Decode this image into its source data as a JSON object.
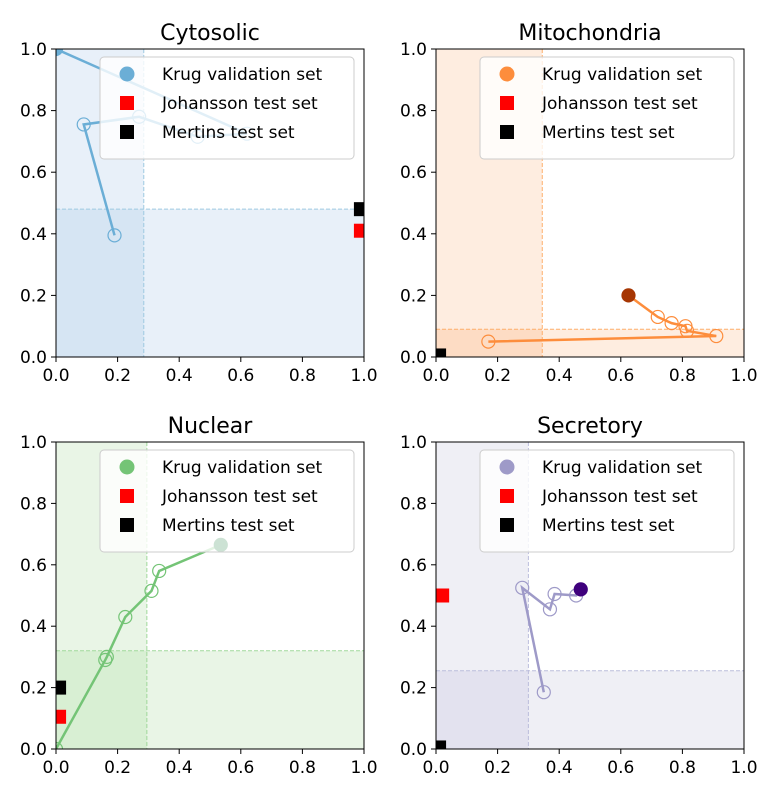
{
  "chart_data": [
    {
      "type": "scatter",
      "title": "Cytosolic",
      "xlim": [
        0,
        1
      ],
      "ylim": [
        0,
        1
      ],
      "xticks": [
        "0.0",
        "0.2",
        "0.4",
        "0.6",
        "0.8",
        "1.0"
      ],
      "yticks": [
        "0.0",
        "0.2",
        "0.4",
        "0.6",
        "0.8",
        "1.0"
      ],
      "legend_position": "top-right",
      "colors": {
        "line": "#6baed6",
        "region_light": "#e8f0f9",
        "region_dark": "#d6e5f3",
        "threshold": "#9ecae1",
        "final": "#6baed6"
      },
      "thresholds": {
        "x": 0.285,
        "y": 0.48
      },
      "series": [
        {
          "name": "Krug validation set",
          "marker": "circle",
          "x": [
            0.19,
            0.09,
            0.27,
            0.46,
            0.62,
            0.0
          ],
          "y": [
            0.395,
            0.755,
            0.78,
            0.715,
            0.725,
            1.0
          ]
        },
        {
          "name": "Johansson test set",
          "marker": "square",
          "color": "#ff0000",
          "x": [
            0.99
          ],
          "y": [
            0.41
          ]
        },
        {
          "name": "Mertins test set",
          "marker": "square",
          "color": "#000000",
          "x": [
            0.99
          ],
          "y": [
            0.48
          ]
        }
      ]
    },
    {
      "type": "scatter",
      "title": "Mitochondria",
      "xlim": [
        0,
        1
      ],
      "ylim": [
        0,
        1
      ],
      "xticks": [
        "0.0",
        "0.2",
        "0.4",
        "0.6",
        "0.8",
        "1.0"
      ],
      "yticks": [
        "0.0",
        "0.2",
        "0.4",
        "0.6",
        "0.8",
        "1.0"
      ],
      "legend_position": "top-right",
      "colors": {
        "line": "#fd8d3c",
        "region_light": "#feede0",
        "region_dark": "#fddcc4",
        "threshold": "#fdae6b",
        "final": "#a63603"
      },
      "thresholds": {
        "x": 0.345,
        "y": 0.09
      },
      "series": [
        {
          "name": "Krug validation set",
          "marker": "circle",
          "x": [
            0.17,
            0.91,
            0.815,
            0.81,
            0.765,
            0.72,
            0.625
          ],
          "y": [
            0.05,
            0.068,
            0.085,
            0.1,
            0.11,
            0.13,
            0.2
          ]
        },
        {
          "name": "Johansson test set",
          "marker": "square",
          "color": "#ff0000",
          "x": [],
          "y": []
        },
        {
          "name": "Mertins test set",
          "marker": "square",
          "color": "#000000",
          "x": [
            0.01
          ],
          "y": [
            0.005
          ]
        }
      ]
    },
    {
      "type": "scatter",
      "title": "Nuclear",
      "xlim": [
        0,
        1
      ],
      "ylim": [
        0,
        1
      ],
      "xticks": [
        "0.0",
        "0.2",
        "0.4",
        "0.6",
        "0.8",
        "1.0"
      ],
      "yticks": [
        "0.0",
        "0.2",
        "0.4",
        "0.6",
        "0.8",
        "1.0"
      ],
      "legend_position": "top-right",
      "colors": {
        "line": "#74c476",
        "region_light": "#e9f5e6",
        "region_dark": "#d8efd3",
        "threshold": "#a1d99b",
        "final": "#006d2c"
      },
      "thresholds": {
        "x": 0.295,
        "y": 0.32
      },
      "series": [
        {
          "name": "Krug validation set",
          "marker": "circle",
          "x": [
            0.0,
            0.16,
            0.165,
            0.225,
            0.31,
            0.335,
            0.535
          ],
          "y": [
            0.0,
            0.29,
            0.3,
            0.43,
            0.515,
            0.58,
            0.665
          ]
        },
        {
          "name": "Johansson test set",
          "marker": "square",
          "color": "#ff0000",
          "x": [
            0.01
          ],
          "y": [
            0.105
          ]
        },
        {
          "name": "Mertins test set",
          "marker": "square",
          "color": "#000000",
          "x": [
            0.01
          ],
          "y": [
            0.2
          ]
        }
      ]
    },
    {
      "type": "scatter",
      "title": "Secretory",
      "xlim": [
        0,
        1
      ],
      "ylim": [
        0,
        1
      ],
      "xticks": [
        "0.0",
        "0.2",
        "0.4",
        "0.6",
        "0.8",
        "1.0"
      ],
      "yticks": [
        "0.0",
        "0.2",
        "0.4",
        "0.6",
        "0.8",
        "1.0"
      ],
      "legend_position": "top-right",
      "colors": {
        "line": "#9e9ac8",
        "region_light": "#efeff5",
        "region_dark": "#e3e2ef",
        "threshold": "#bcbddc",
        "final": "#3f007d"
      },
      "thresholds": {
        "x": 0.3,
        "y": 0.255
      },
      "series": [
        {
          "name": "Krug validation set",
          "marker": "circle",
          "x": [
            0.35,
            0.28,
            0.37,
            0.385,
            0.455,
            0.47
          ],
          "y": [
            0.185,
            0.525,
            0.455,
            0.505,
            0.5,
            0.52
          ]
        },
        {
          "name": "Johansson test set",
          "marker": "square",
          "color": "#ff0000",
          "x": [
            0.02
          ],
          "y": [
            0.5
          ]
        },
        {
          "name": "Mertins test set",
          "marker": "square",
          "color": "#000000",
          "x": [
            0.01
          ],
          "y": [
            0.005
          ]
        }
      ]
    }
  ]
}
